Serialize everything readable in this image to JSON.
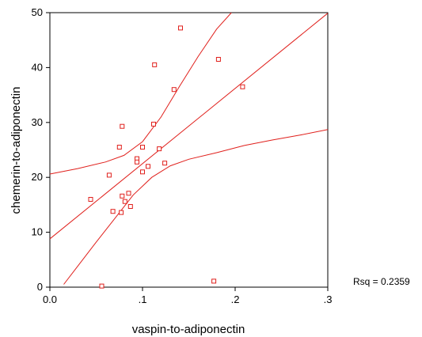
{
  "chart_data": {
    "type": "scatter",
    "title": "",
    "xlabel": "vaspin-to-adiponectin",
    "ylabel": "chemerin-to-adiponectin",
    "xlim": [
      0.0,
      0.3
    ],
    "ylim": [
      0,
      50
    ],
    "x_ticks": [
      0.0,
      0.1,
      0.2,
      0.3
    ],
    "x_tick_labels": [
      "0.0",
      ".1",
      ".2",
      ".3"
    ],
    "y_ticks": [
      0,
      10,
      20,
      30,
      40,
      50
    ],
    "y_tick_labels": [
      "0",
      "10",
      "20",
      "30",
      "40",
      "50"
    ],
    "grid": false,
    "annotation": "Rsq = 0.2359",
    "colors": {
      "marks": "#e0201c",
      "frame": "#000000"
    },
    "points": [
      {
        "x": 0.141,
        "y": 47.2
      },
      {
        "x": 0.113,
        "y": 40.5
      },
      {
        "x": 0.182,
        "y": 41.5
      },
      {
        "x": 0.134,
        "y": 36.0
      },
      {
        "x": 0.208,
        "y": 36.5
      },
      {
        "x": 0.078,
        "y": 29.3
      },
      {
        "x": 0.112,
        "y": 29.7
      },
      {
        "x": 0.075,
        "y": 25.5
      },
      {
        "x": 0.1,
        "y": 25.5
      },
      {
        "x": 0.118,
        "y": 25.2
      },
      {
        "x": 0.094,
        "y": 23.4
      },
      {
        "x": 0.094,
        "y": 22.8
      },
      {
        "x": 0.124,
        "y": 22.6
      },
      {
        "x": 0.106,
        "y": 22.0
      },
      {
        "x": 0.1,
        "y": 21.0
      },
      {
        "x": 0.064,
        "y": 20.4
      },
      {
        "x": 0.044,
        "y": 16.0
      },
      {
        "x": 0.078,
        "y": 16.6
      },
      {
        "x": 0.085,
        "y": 17.1
      },
      {
        "x": 0.081,
        "y": 15.6
      },
      {
        "x": 0.087,
        "y": 14.7
      },
      {
        "x": 0.068,
        "y": 13.8
      },
      {
        "x": 0.077,
        "y": 13.6
      },
      {
        "x": 0.177,
        "y": 1.1
      },
      {
        "x": 0.056,
        "y": 0.2
      }
    ],
    "fit_line": {
      "intercept": 8.8,
      "slope": 137.0
    },
    "ci_upper": [
      [
        0.0,
        20.6
      ],
      [
        0.03,
        21.6
      ],
      [
        0.06,
        22.8
      ],
      [
        0.08,
        24.0
      ],
      [
        0.1,
        26.5
      ],
      [
        0.12,
        31.0
      ],
      [
        0.14,
        36.6
      ],
      [
        0.16,
        42.0
      ],
      [
        0.18,
        47.0
      ],
      [
        0.196,
        50.0
      ]
    ],
    "ci_lower": [
      [
        0.015,
        0.5
      ],
      [
        0.03,
        3.8
      ],
      [
        0.05,
        8.2
      ],
      [
        0.07,
        12.5
      ],
      [
        0.09,
        16.8
      ],
      [
        0.11,
        20.0
      ],
      [
        0.13,
        22.1
      ],
      [
        0.15,
        23.3
      ],
      [
        0.18,
        24.5
      ],
      [
        0.21,
        25.8
      ],
      [
        0.24,
        26.8
      ],
      [
        0.27,
        27.7
      ],
      [
        0.3,
        28.7
      ]
    ]
  }
}
